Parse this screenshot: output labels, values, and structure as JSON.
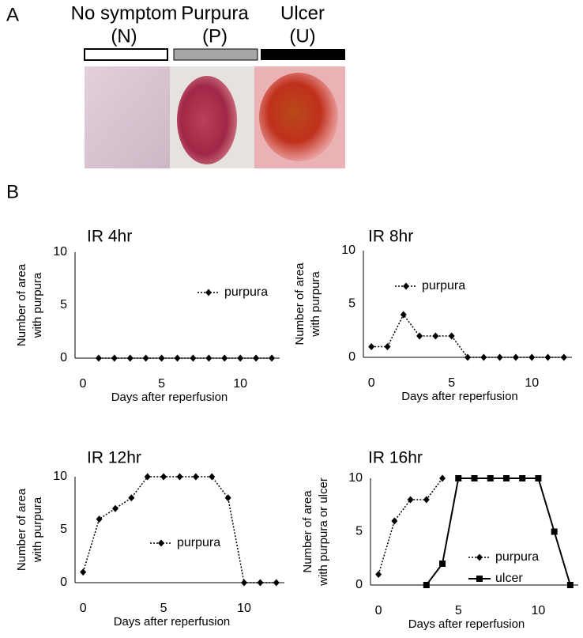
{
  "panel_a": {
    "label": "A",
    "groups": [
      {
        "name": "No symptom",
        "code": "(N)"
      },
      {
        "name": "Purpura",
        "code": "(P)"
      },
      {
        "name": "Ulcer",
        "code": "(U)"
      }
    ]
  },
  "panel_b": {
    "label": "B"
  },
  "chart_data": [
    {
      "type": "line",
      "title": "IR 4hr",
      "xlabel": "Days after reperfusion",
      "ylabel": [
        "Number of area",
        "with purpura"
      ],
      "xlim": [
        -0.5,
        12.5
      ],
      "ylim": [
        0,
        10
      ],
      "xticks": [
        0,
        5,
        10
      ],
      "yticks": [
        0,
        5,
        10
      ],
      "series": [
        {
          "name": "purpura",
          "color": "#000000",
          "dash": "dotted",
          "marker": "diamond",
          "x": [
            1,
            2,
            3,
            4,
            5,
            6,
            7,
            8,
            9,
            10,
            11,
            12
          ],
          "values": [
            0,
            0,
            0,
            0,
            0,
            0,
            0,
            0,
            0,
            0,
            0,
            0
          ]
        }
      ]
    },
    {
      "type": "line",
      "title": "IR 8hr",
      "xlabel": "Days after reperfusion",
      "ylabel": [
        "Number of area",
        "with purpura"
      ],
      "xlim": [
        -0.5,
        12.5
      ],
      "ylim": [
        0,
        10
      ],
      "xticks": [
        0,
        5,
        10
      ],
      "yticks": [
        0,
        5,
        10
      ],
      "series": [
        {
          "name": "purpura",
          "color": "#000000",
          "dash": "dotted",
          "marker": "diamond",
          "x": [
            0,
            1,
            2,
            3,
            4,
            5,
            6,
            7,
            8,
            9,
            10,
            11,
            12
          ],
          "values": [
            1,
            1,
            4,
            2,
            2,
            2,
            0,
            0,
            0,
            0,
            0,
            0,
            0
          ]
        }
      ]
    },
    {
      "type": "line",
      "title": "IR 12hr",
      "xlabel": "Days after reperfusion",
      "ylabel": [
        "Number of area",
        "with purpura"
      ],
      "xlim": [
        -0.5,
        12.5
      ],
      "ylim": [
        0,
        10
      ],
      "xticks": [
        0,
        5,
        10
      ],
      "yticks": [
        0,
        5,
        10
      ],
      "series": [
        {
          "name": "purpura",
          "color": "#000000",
          "dash": "dotted",
          "marker": "diamond",
          "x": [
            0,
            1,
            2,
            3,
            4,
            5,
            6,
            7,
            8,
            9,
            10,
            11,
            12
          ],
          "values": [
            1,
            6,
            7,
            8,
            10,
            10,
            10,
            10,
            10,
            8,
            0,
            0,
            0
          ]
        }
      ]
    },
    {
      "type": "line",
      "title": "IR 16hr",
      "xlabel": "Days after reperfusion",
      "ylabel": [
        "Number of area",
        "with purpura or ulcer"
      ],
      "xlim": [
        -0.5,
        12.5
      ],
      "ylim": [
        0,
        10
      ],
      "xticks": [
        0,
        5,
        10
      ],
      "yticks": [
        0,
        5,
        10
      ],
      "series": [
        {
          "name": "purpura",
          "color": "#000000",
          "dash": "dotted",
          "marker": "diamond",
          "x": [
            0,
            1,
            2,
            3,
            4
          ],
          "values": [
            1,
            6,
            8,
            8,
            10
          ]
        },
        {
          "name": "ulcer",
          "color": "#000000",
          "dash": "solid",
          "marker": "square",
          "x": [
            3,
            4,
            5,
            6,
            7,
            8,
            9,
            10,
            11,
            12
          ],
          "values": [
            0,
            2,
            10,
            10,
            10,
            10,
            10,
            10,
            5,
            0
          ]
        }
      ]
    }
  ]
}
